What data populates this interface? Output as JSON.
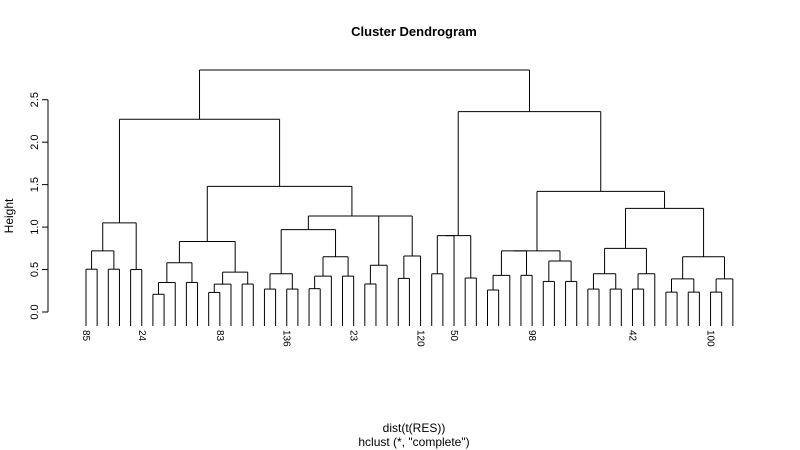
{
  "chart_data": {
    "type": "dendrogram",
    "title": "Cluster Dendrogram",
    "xlabel": "dist(t(RES))",
    "xlabel_sub": "hclust (*, \"complete\")",
    "ylabel": "Height",
    "ylim": [
      0,
      2.85
    ],
    "yticks": [
      0.0,
      0.5,
      1.0,
      1.5,
      2.0,
      2.5
    ],
    "ytick_labels": [
      "0.0",
      "0.5",
      "1.0",
      "1.5",
      "2.0",
      "2.5"
    ],
    "root_height": 2.85,
    "top_merges": [
      {
        "name": "left-main",
        "height": 2.27
      },
      {
        "name": "right-main",
        "height": 2.36
      },
      {
        "name": "left-mid-a",
        "height": 1.5
      },
      {
        "name": "left-mid-b",
        "height": 1.48
      },
      {
        "name": "right-mid",
        "height": 1.42
      },
      {
        "name": "right-sub",
        "height": 1.22
      },
      {
        "name": "left-sub",
        "height": 1.13
      },
      {
        "name": "left-subsub",
        "height": 0.98
      }
    ],
    "visible_leaf_labels": [
      "85",
      "24",
      "83",
      "136",
      "23",
      "120",
      "50",
      "98",
      "42",
      "100"
    ]
  }
}
